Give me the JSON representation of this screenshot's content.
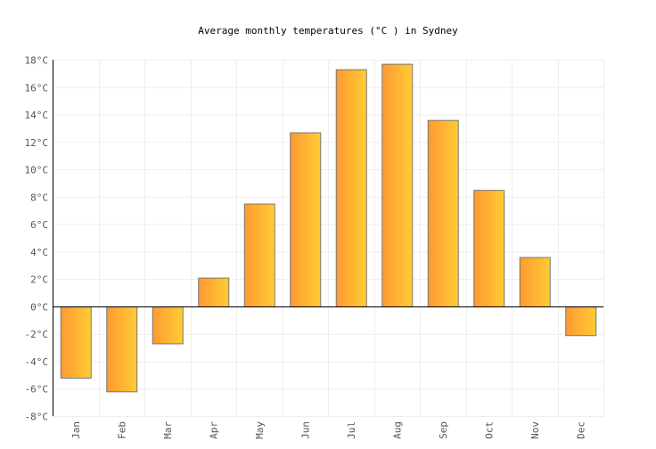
{
  "chart_data": {
    "type": "bar",
    "title": "Average monthly temperatures (°C ) in Sydney",
    "xlabel": "",
    "ylabel": "",
    "categories": [
      "Jan",
      "Feb",
      "Mar",
      "Apr",
      "May",
      "Jun",
      "Jul",
      "Aug",
      "Sep",
      "Oct",
      "Nov",
      "Dec"
    ],
    "values": [
      -5.2,
      -6.2,
      -2.7,
      2.1,
      7.5,
      12.7,
      17.3,
      17.7,
      13.6,
      8.5,
      3.6,
      -2.1
    ],
    "ylim": [
      -8,
      18
    ],
    "yticks": [
      -8,
      -6,
      -4,
      -2,
      0,
      2,
      4,
      6,
      8,
      10,
      12,
      14,
      16,
      18
    ],
    "ytick_suffix": "°C",
    "grid": true,
    "colors": {
      "bar_start": "#ff9933",
      "bar_end": "#ffcc33",
      "bar_stroke": "#777777",
      "grid": "#eeeeee",
      "axis": "#000000",
      "text": "#555555"
    }
  }
}
